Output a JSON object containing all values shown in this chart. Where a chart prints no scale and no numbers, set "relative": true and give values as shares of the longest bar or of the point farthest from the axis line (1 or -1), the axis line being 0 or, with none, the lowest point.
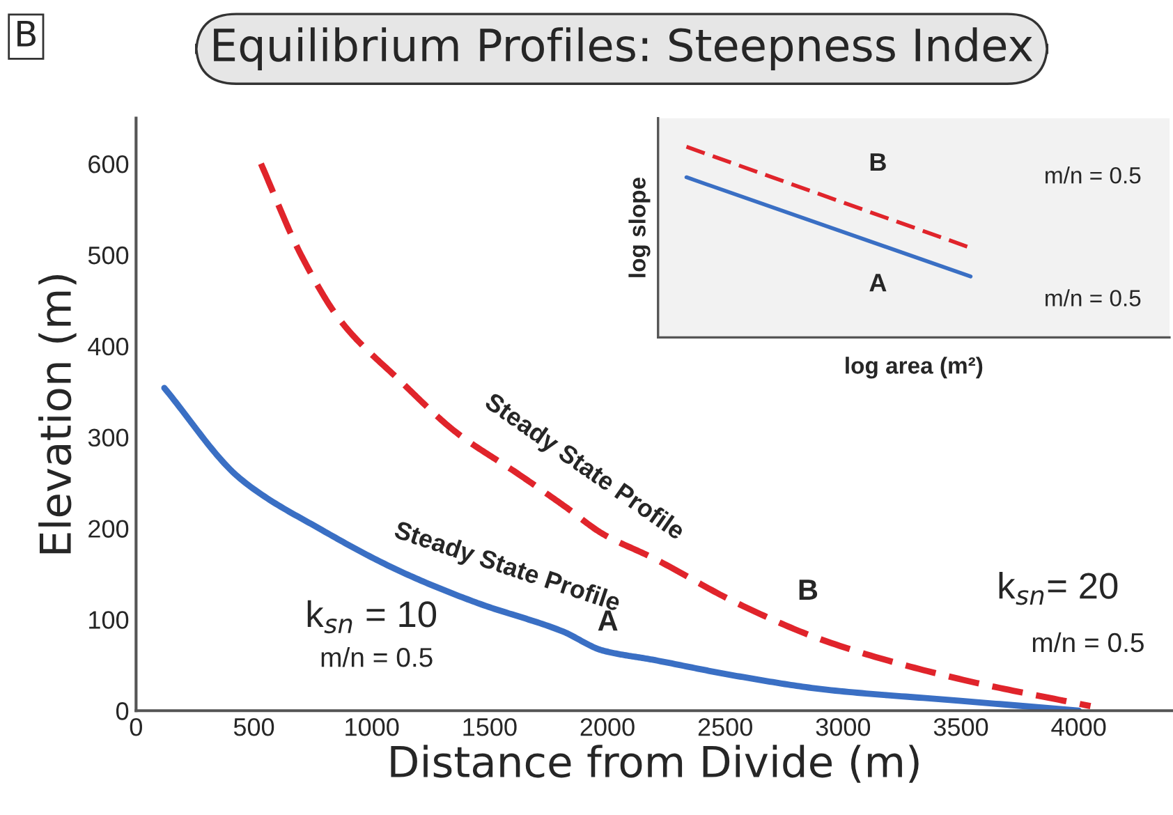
{
  "chart_data": [
    {
      "type": "line",
      "title": "Equilibrium Profiles: Steepness Index",
      "xlabel": "Distance from Divide (m)",
      "ylabel": "Elevation (m)",
      "xlim": [
        0,
        4400
      ],
      "xticks": [
        0,
        500,
        1000,
        1500,
        2000,
        2500,
        3000,
        3500,
        4000
      ],
      "ylim": [
        0,
        650
      ],
      "yticks": [
        0,
        100,
        200,
        300,
        400,
        500,
        600
      ],
      "grid": false,
      "legend": false,
      "series": [
        {
          "name": "Steady State Profile",
          "color": "#3a6fc4",
          "line_style": "solid",
          "x": [
            120,
            440,
            790,
            1120,
            1450,
            1810,
            1980,
            2190,
            2550,
            2930,
            3490,
            4000
          ],
          "values": [
            354,
            255,
            198,
            153,
            118,
            87,
            66,
            56,
            38,
            23,
            11,
            0
          ]
        },
        {
          "name": "Steady State Profile",
          "color": "#e0242b",
          "line_style": "dashed",
          "x": [
            530,
            700,
            870,
            1120,
            1360,
            1620,
            1820,
            1980,
            2190,
            2550,
            2930,
            3490,
            4050
          ],
          "values": [
            600,
            500,
            427,
            362,
            305,
            260,
            224,
            194,
            168,
            118,
            76,
            35,
            5
          ]
        }
      ],
      "annotations": [
        "B",
        "A",
        "B",
        "k$_{sn}$ = 10",
        "m/n = 0.5",
        "k$_{sn}$= 20",
        "m/n = 0.5"
      ]
    },
    {
      "type": "line",
      "relative": true,
      "xlabel": "log area (m²)",
      "ylabel": "log slope",
      "categories": [
        null,
        null
      ],
      "legend": false,
      "series": [
        {
          "color": "#e0242b",
          "line_style": "dashed",
          "values": [
            1,
            0.47
          ]
        },
        {
          "color": "#3a6fc4",
          "line_style": "solid",
          "values": [
            0.84,
            0.32
          ]
        }
      ],
      "annotations": [
        "B",
        "m/n = 0.5",
        "A",
        "m/n = 0.5"
      ]
    }
  ]
}
